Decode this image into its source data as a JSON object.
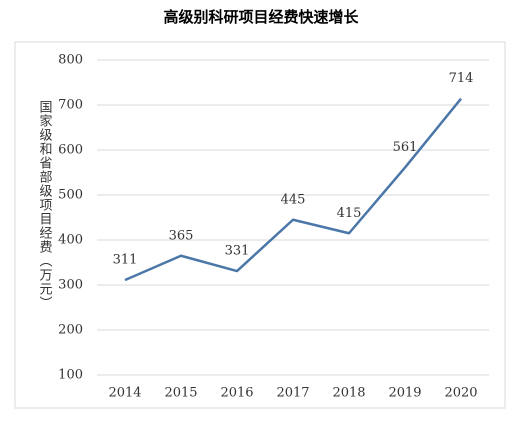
{
  "chart_data": {
    "type": "line",
    "title": "高级别科研项目经费快速增长",
    "y_label": "国家级和省部级项目经费（万元）",
    "categories": [
      "2014",
      "2015",
      "2016",
      "2017",
      "2018",
      "2019",
      "2020"
    ],
    "values": [
      311,
      365,
      331,
      445,
      415,
      561,
      714
    ],
    "color": "#4a76a8",
    "ylim": [
      100,
      800
    ],
    "yticks": [
      100,
      200,
      300,
      400,
      500,
      600,
      700,
      800
    ],
    "grid": true
  }
}
